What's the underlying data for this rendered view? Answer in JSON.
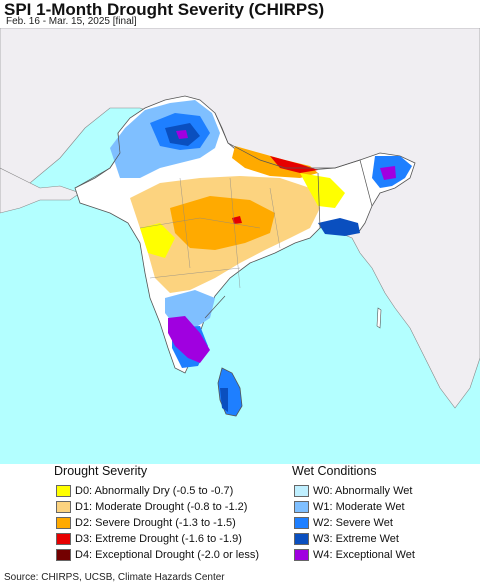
{
  "header": {
    "title": "SPI 1-Month Drought Severity (CHIRPS)",
    "subtitle": "Feb. 16 - Mar. 15, 2025 [final]"
  },
  "legend": {
    "drought_title": "Drought Severity",
    "wet_title": "Wet Conditions",
    "drought_items": [
      {
        "label": "D0: Abnormally Dry (-0.5 to -0.7)",
        "color": "#ffff00"
      },
      {
        "label": "D1: Moderate Drought (-0.8 to -1.2)",
        "color": "#fcd37f"
      },
      {
        "label": "D2: Severe Drought (-1.3 to -1.5)",
        "color": "#ffaa00"
      },
      {
        "label": "D3: Extreme Drought (-1.6 to -1.9)",
        "color": "#e60000"
      },
      {
        "label": "D4: Exceptional Drought (-2.0 or less)",
        "color": "#730000"
      }
    ],
    "wet_items": [
      {
        "label": "W0: Abnormally Wet",
        "color": "#bfefff"
      },
      {
        "label": "W1: Moderate Wet",
        "color": "#7fbfff"
      },
      {
        "label": "W2: Severe Wet",
        "color": "#1e7fff"
      },
      {
        "label": "W3: Extreme Wet",
        "color": "#0a4fbf"
      },
      {
        "label": "W4: Exceptional Wet",
        "color": "#a000e0"
      }
    ]
  },
  "map": {
    "ocean_color": "#b3ffff",
    "land_color": "#f0eef2",
    "neutral_color": "#ffffff",
    "border_color": "#555555"
  },
  "footer": {
    "source": "Source: CHIRPS, UCSB, Climate Hazards Center"
  }
}
